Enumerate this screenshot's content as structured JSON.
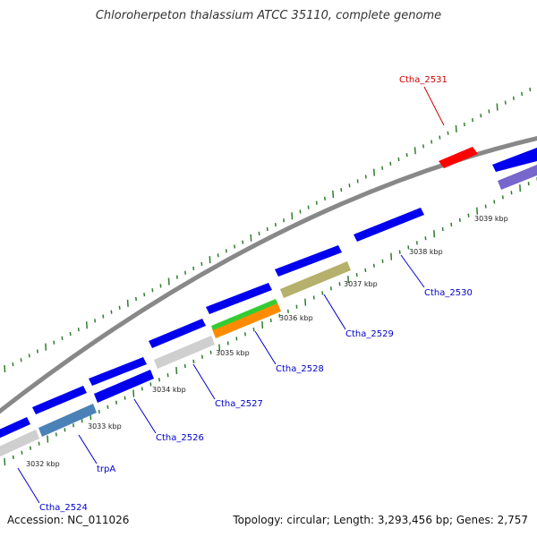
{
  "title": "Chloroherpeton thalassium ATCC 35110, complete genome",
  "footer": {
    "accession": "Accession: NC_011026",
    "summary": "Topology: circular; Length: 3,293,456 bp; Genes: 2,757"
  },
  "colors": {
    "gene_forward": "#0000ee",
    "gene_reverse_highlight": "#ff0000",
    "label_blue": "#0000cc",
    "label_red": "#cc0000",
    "backbone": "#888888",
    "tick": "#2e7d2e"
  },
  "kbp_labels": [
    "3032 kbp",
    "3033 kbp",
    "3034 kbp",
    "3035 kbp",
    "3036 kbp",
    "3037 kbp",
    "3038 kbp",
    "3039 kbp"
  ],
  "gene_labels": [
    {
      "text": "Ctha_2524",
      "color": "blue"
    },
    {
      "text": "trpA",
      "color": "blue"
    },
    {
      "text": "Ctha_2526",
      "color": "blue"
    },
    {
      "text": "Ctha_2527",
      "color": "blue"
    },
    {
      "text": "Ctha_2528",
      "color": "blue"
    },
    {
      "text": "Ctha_2529",
      "color": "blue"
    },
    {
      "text": "Ctha_2530",
      "color": "blue"
    },
    {
      "text": "Ctha_2531",
      "color": "red"
    }
  ]
}
